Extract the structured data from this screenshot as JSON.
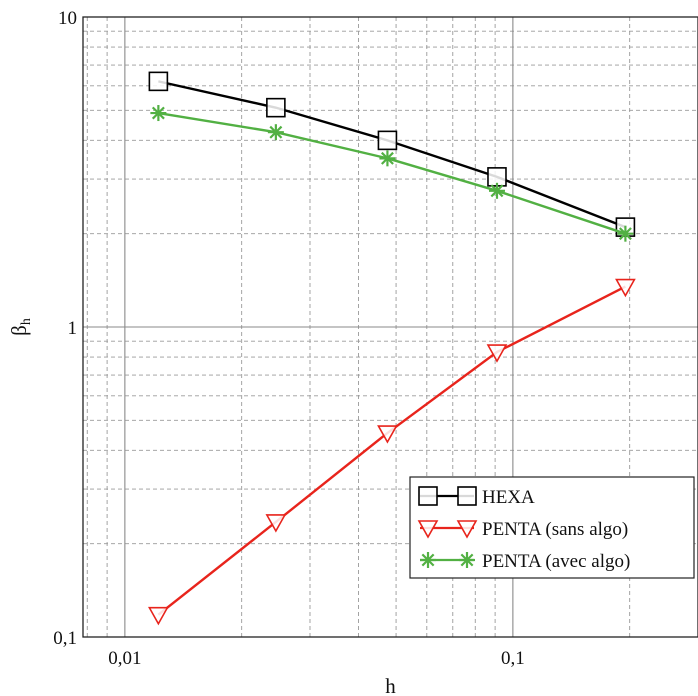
{
  "chart_data": {
    "type": "line",
    "xscale": "log",
    "yscale": "log",
    "xlim": [
      0.0078,
      0.3
    ],
    "ylim": [
      0.1,
      10
    ],
    "grid": true,
    "legend_position": "bottom-right",
    "xlabel": "h",
    "ylabel": "β",
    "ylabel_subscript": "h",
    "xticks": [
      {
        "value": 0.01,
        "label": "0,01"
      },
      {
        "value": 0.1,
        "label": "0,1"
      }
    ],
    "yticks": [
      {
        "value": 0.1,
        "label": "0,1"
      },
      {
        "value": 1,
        "label": "1"
      },
      {
        "value": 10,
        "label": "10"
      }
    ],
    "series": [
      {
        "name": "HEXA",
        "color": "#000000",
        "marker": "square",
        "x": [
          0.0122,
          0.0245,
          0.0475,
          0.091,
          0.195
        ],
        "y": [
          6.2,
          5.1,
          4.0,
          3.05,
          2.1
        ]
      },
      {
        "name": "PENTA (sans algo)",
        "color": "#e8241c",
        "marker": "triangle-down",
        "x": [
          0.0122,
          0.0245,
          0.0475,
          0.091,
          0.195
        ],
        "y": [
          0.118,
          0.235,
          0.455,
          0.83,
          1.35
        ]
      },
      {
        "name": "PENTA (avec algo)",
        "color": "#52b043",
        "marker": "asterisk",
        "x": [
          0.0122,
          0.0245,
          0.0475,
          0.091,
          0.195
        ],
        "y": [
          4.9,
          4.25,
          3.5,
          2.75,
          2.0
        ]
      }
    ]
  }
}
